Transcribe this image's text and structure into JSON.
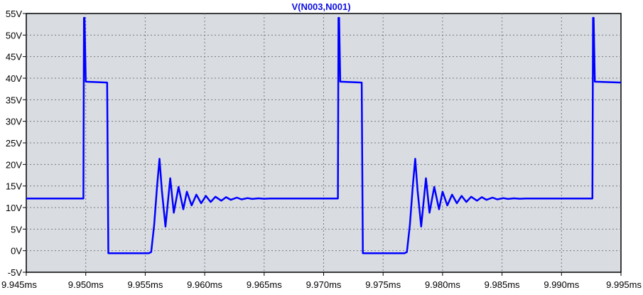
{
  "chart_data": {
    "type": "line",
    "title": "V(N003,N001)",
    "xlabel": "",
    "ylabel": "",
    "xlim": [
      9.945,
      9.995
    ],
    "ylim": [
      -5,
      55
    ],
    "x_unit": "ms",
    "y_unit": "V",
    "grid": true,
    "legend": "none",
    "colors": {
      "background": "#d9dde2",
      "frame": "#000000",
      "grid": "#7a7a7a",
      "trace": "#0000ff",
      "title": "#1010e0"
    },
    "x_ticks": [
      "9.945ms",
      "9.950ms",
      "9.955ms",
      "9.960ms",
      "9.965ms",
      "9.970ms",
      "9.975ms",
      "9.980ms",
      "9.985ms",
      "9.990ms",
      "9.995ms"
    ],
    "y_ticks": [
      "-5V",
      "0V",
      "5V",
      "10V",
      "15V",
      "20V",
      "25V",
      "30V",
      "35V",
      "40V",
      "45V",
      "50V",
      "55V"
    ],
    "series": [
      {
        "name": "V(N003,N001)",
        "x": [
          9.945,
          9.9497,
          9.9498,
          9.94985,
          9.9499,
          9.95,
          9.9518,
          9.9519,
          9.952,
          9.9553,
          9.9555,
          9.95575,
          9.956,
          9.9562,
          9.9564,
          9.9567,
          9.9571,
          9.9574,
          9.9578,
          9.9582,
          9.9585,
          9.9589,
          9.9593,
          9.9597,
          9.9601,
          9.9605,
          9.9609,
          9.9614,
          9.9618,
          9.9622,
          9.9627,
          9.9631,
          9.9636,
          9.964,
          9.9645,
          9.965,
          9.9655,
          9.966,
          9.9666,
          9.9672,
          9.9678,
          9.9684,
          9.969,
          9.9697,
          9.9704,
          9.971,
          9.9712,
          9.97125,
          9.9713,
          9.9714,
          9.9732,
          9.9733,
          9.9734,
          9.9768,
          9.977,
          9.97725,
          9.9775,
          9.9777,
          9.9779,
          9.9782,
          9.9786,
          9.9789,
          9.9793,
          9.9797,
          9.98,
          9.9804,
          9.9808,
          9.9812,
          9.9816,
          9.982,
          9.9824,
          9.9829,
          9.9833,
          9.9837,
          9.9842,
          9.9846,
          9.9851,
          9.9855,
          9.986,
          9.9865,
          9.987,
          9.9875,
          9.9881,
          9.9887,
          9.9893,
          9.9899,
          9.9905,
          9.9912,
          9.9919,
          9.9925,
          9.9926,
          9.99265,
          9.9927,
          9.9928,
          9.995
        ],
        "y": [
          12.1,
          12.1,
          12.1,
          54.0,
          54.0,
          39.2,
          39.0,
          -0.6,
          -0.6,
          -0.6,
          -0.3,
          6.0,
          15.0,
          21.3,
          14.0,
          5.6,
          16.8,
          8.8,
          14.8,
          9.6,
          13.7,
          10.5,
          13.0,
          11.0,
          12.7,
          11.3,
          12.5,
          11.6,
          12.4,
          11.8,
          12.3,
          11.9,
          12.2,
          12.0,
          12.15,
          12.05,
          12.1,
          12.1,
          12.1,
          12.1,
          12.1,
          12.1,
          12.1,
          12.1,
          12.1,
          12.1,
          12.1,
          54.0,
          54.0,
          39.2,
          39.0,
          -0.6,
          -0.6,
          -0.6,
          -0.3,
          6.0,
          15.0,
          21.3,
          14.0,
          5.6,
          16.8,
          8.8,
          14.8,
          9.6,
          13.7,
          10.5,
          13.0,
          11.0,
          12.7,
          11.3,
          12.5,
          11.6,
          12.4,
          11.8,
          12.3,
          11.9,
          12.2,
          12.0,
          12.15,
          12.05,
          12.1,
          12.1,
          12.1,
          12.1,
          12.1,
          12.1,
          12.1,
          12.1,
          12.1,
          12.1,
          12.1,
          54.0,
          54.0,
          39.2,
          39.0
        ]
      }
    ]
  }
}
